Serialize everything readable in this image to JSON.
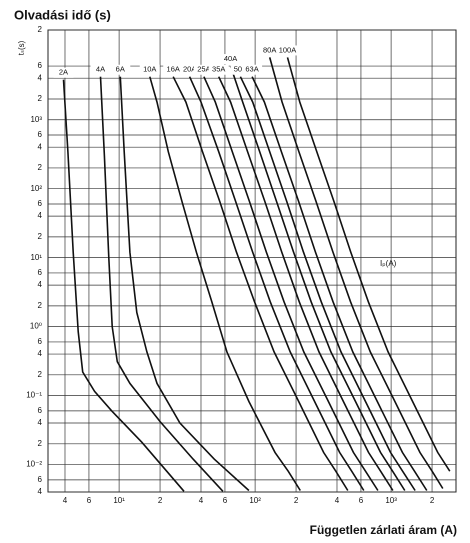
{
  "chart_data": {
    "type": "line",
    "title": "Olvadási idő (s)",
    "xlabel": "Független zárlati áram (A)",
    "ylabel": "tₛ(s)",
    "x_inner_label": "Iₚ(A)",
    "log_x": true,
    "log_y": true,
    "grid": true,
    "xlim": [
      3,
      3000
    ],
    "ylim": [
      0.004,
      20000
    ],
    "xticks": [
      4,
      6,
      {
        "value": 10,
        "label": "10¹"
      },
      {
        "value": 20,
        "label": "2"
      },
      {
        "value": 40,
        "label": "4"
      },
      {
        "value": 60,
        "label": "6"
      },
      {
        "value": 100,
        "label": "10²"
      },
      {
        "value": 200,
        "label": "2"
      },
      {
        "value": 400,
        "label": "4"
      },
      {
        "value": 600,
        "label": "6"
      },
      {
        "value": 1000,
        "label": "10³"
      },
      {
        "value": 2000,
        "label": "2"
      }
    ],
    "yticks": [
      {
        "value": 0.004,
        "label": "4"
      },
      {
        "value": 0.006,
        "label": "6"
      },
      {
        "value": 0.01,
        "label": "10⁻²"
      },
      {
        "value": 0.02,
        "label": "2"
      },
      {
        "value": 0.04,
        "label": "4"
      },
      {
        "value": 0.06,
        "label": "6"
      },
      {
        "value": 0.1,
        "label": "10⁻¹"
      },
      {
        "value": 0.2,
        "label": "2"
      },
      {
        "value": 0.4,
        "label": "4"
      },
      {
        "value": 0.6,
        "label": "6"
      },
      {
        "value": 1,
        "label": "10⁰"
      },
      2,
      4,
      6,
      {
        "value": 10,
        "label": "10¹"
      },
      {
        "value": 20,
        "label": "2"
      },
      {
        "value": 40,
        "label": "4"
      },
      {
        "value": 60,
        "label": "6"
      },
      {
        "value": 100,
        "label": "10²"
      },
      {
        "value": 200,
        "label": "2"
      },
      {
        "value": 400,
        "label": "4"
      },
      {
        "value": 600,
        "label": "6"
      },
      {
        "value": 1000,
        "label": "10³"
      },
      {
        "value": 2000,
        "label": "2"
      },
      {
        "value": 4000,
        "label": "4"
      },
      {
        "value": 6000,
        "label": "6"
      },
      {
        "value": 20000,
        "label": "2"
      }
    ],
    "series": [
      {
        "name": "2A",
        "color": "#111111",
        "x": [
          3.9,
          4.2,
          4.6,
          5.0,
          5.4,
          6.6,
          8.9,
          14.7,
          30
        ],
        "values": [
          3800,
          344,
          12,
          0.85,
          0.22,
          0.115,
          0.059,
          0.021,
          0.0041
        ]
      },
      {
        "name": "4A",
        "color": "#111111",
        "x": [
          7.3,
          7.8,
          8.4,
          8.9,
          9.7,
          12,
          20,
          35,
          58
        ],
        "values": [
          4200,
          300,
          10,
          1.0,
          0.31,
          0.15,
          0.042,
          0.012,
          0.0041
        ]
      },
      {
        "name": "6A",
        "color": "#111111",
        "x": [
          10.2,
          10.9,
          12,
          13.5,
          16,
          19,
          28,
          50,
          90
        ],
        "values": [
          4200,
          344,
          12,
          1.6,
          0.43,
          0.15,
          0.04,
          0.012,
          0.0042
        ]
      },
      {
        "name": "10A",
        "color": "#111111",
        "x": [
          16.8,
          19,
          23,
          29,
          37,
          48,
          62,
          90,
          140,
          175,
          215
        ],
        "values": [
          4200,
          1800,
          344,
          65,
          12,
          2.3,
          0.43,
          0.082,
          0.015,
          0.008,
          0.0042
        ]
      },
      {
        "name": "16A",
        "color": "#111111",
        "x": [
          25,
          31,
          41,
          55,
          73,
          99,
          138,
          209,
          319,
          392,
          480
        ],
        "values": [
          4200,
          1800,
          344,
          65,
          12,
          2.3,
          0.43,
          0.082,
          0.015,
          0.008,
          0.0042
        ]
      },
      {
        "name": "20A",
        "color": "#111111",
        "x": [
          33,
          40,
          54,
          72,
          96,
          129,
          181,
          274,
          418,
          513,
          630
        ],
        "values": [
          4200,
          1800,
          344,
          65,
          12,
          2.3,
          0.43,
          0.082,
          0.015,
          0.008,
          0.0042
        ]
      },
      {
        "name": "25A",
        "color": "#111111",
        "x": [
          42,
          51,
          68,
          91,
          121,
          163,
          228,
          346,
          528,
          648,
          800
        ],
        "values": [
          4200,
          1800,
          344,
          65,
          12,
          2.3,
          0.43,
          0.082,
          0.015,
          0.008,
          0.0042
        ]
      },
      {
        "name": "35A",
        "color": "#111111",
        "x": [
          54,
          66,
          88,
          118,
          157,
          211,
          295,
          446,
          682,
          837,
          1030
        ],
        "values": [
          4200,
          1800,
          344,
          65,
          12,
          2.3,
          0.43,
          0.082,
          0.015,
          0.008,
          0.0042
        ]
      },
      {
        "name": "40A",
        "color": "#111111",
        "x": [
          66,
          81,
          108,
          144,
          192,
          258,
          361,
          547,
          836,
          1026,
          1260
        ],
        "values": [
          6000,
          1800,
          344,
          65,
          12,
          2.3,
          0.43,
          0.082,
          0.015,
          0.008,
          0.0042
        ]
      },
      {
        "name": "50A",
        "color": "#111111",
        "x": [
          78,
          96,
          128,
          171,
          227,
          306,
          428,
          648,
          990,
          1215,
          1500
        ],
        "values": [
          4200,
          1800,
          344,
          65,
          12,
          2.3,
          0.43,
          0.082,
          0.015,
          0.008,
          0.0042
        ]
      },
      {
        "name": "63A",
        "color": "#111111",
        "x": [
          95,
          117,
          156,
          209,
          278,
          374,
          523,
          792,
          1210,
          1485,
          1830
        ],
        "values": [
          4200,
          1800,
          344,
          65,
          12,
          2.3,
          0.43,
          0.082,
          0.015,
          0.008,
          0.0042
        ]
      },
      {
        "name": "80A",
        "color": "#111111",
        "x": [
          128,
          158,
          210,
          281,
          374,
          503,
          703,
          1066,
          1628,
          2000,
          2400
        ],
        "values": [
          8000,
          1800,
          344,
          65,
          12,
          2.3,
          0.43,
          0.082,
          0.015,
          0.008,
          0.0045
        ]
      },
      {
        "name": "100A",
        "color": "#111111",
        "x": [
          173,
          213,
          284,
          380,
          505,
          680,
          950,
          1440,
          2200,
          2700
        ],
        "values": [
          8000,
          1800,
          344,
          65,
          12,
          2.3,
          0.43,
          0.082,
          0.015,
          0.008
        ]
      }
    ]
  }
}
